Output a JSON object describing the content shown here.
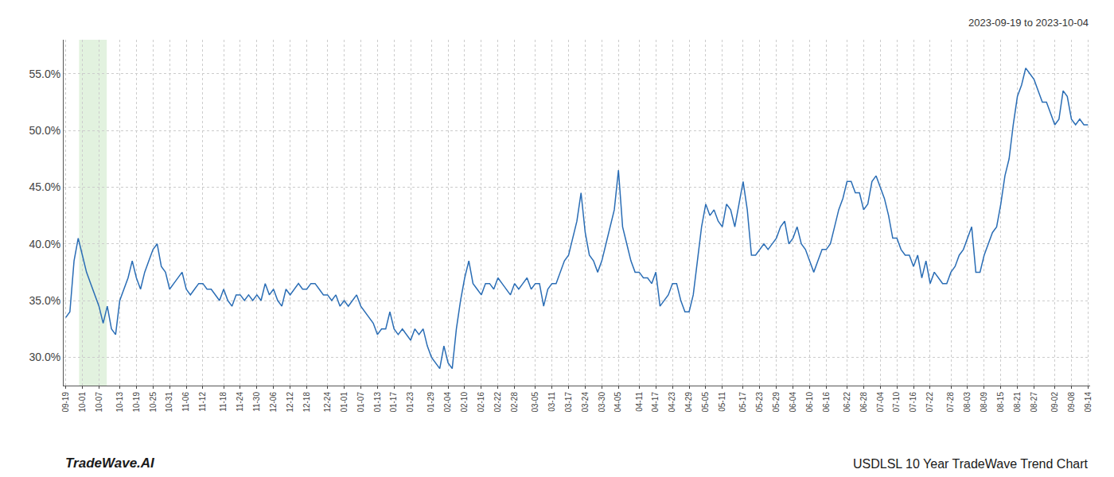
{
  "chart_data": {
    "type": "line",
    "title": "USDLSL 10 Year TradeWave Trend Chart",
    "subtitle": "2023-09-19 to 2023-10-04",
    "annotations": [
      "TradeWave.AI"
    ],
    "color": "#2a6db5",
    "grid": true,
    "ylim": [
      27.5,
      58.0
    ],
    "yticks": [
      {
        "value": 30.0,
        "label": "30.0%"
      },
      {
        "value": 35.0,
        "label": "35.0%"
      },
      {
        "value": 40.0,
        "label": "40.0%"
      },
      {
        "value": 45.0,
        "label": "45.0%"
      },
      {
        "value": 50.0,
        "label": "50.0%"
      },
      {
        "value": 55.0,
        "label": "55.0%"
      }
    ],
    "categories": [
      "09-19",
      null,
      null,
      null,
      "10-01",
      null,
      null,
      null,
      "10-07",
      null,
      null,
      null,
      null,
      "10-13",
      null,
      null,
      null,
      "10-19",
      null,
      null,
      null,
      "10-25",
      null,
      null,
      null,
      "10-31",
      null,
      null,
      null,
      "11-06",
      null,
      null,
      null,
      "11-12",
      null,
      null,
      null,
      null,
      "11-18",
      null,
      null,
      null,
      "11-24",
      null,
      null,
      null,
      "11-30",
      null,
      null,
      null,
      "12-06",
      null,
      null,
      null,
      "12-12",
      null,
      null,
      null,
      "12-18",
      null,
      null,
      null,
      null,
      "12-24",
      null,
      null,
      null,
      "01-01",
      null,
      null,
      null,
      "01-07",
      null,
      null,
      null,
      "01-13",
      null,
      null,
      null,
      "01-17",
      null,
      null,
      null,
      "01-23",
      null,
      null,
      null,
      null,
      "01-29",
      null,
      null,
      null,
      "02-04",
      null,
      null,
      null,
      "02-10",
      null,
      null,
      null,
      "02-16",
      null,
      null,
      null,
      "02-22",
      null,
      null,
      null,
      "02-28",
      null,
      null,
      null,
      null,
      "03-05",
      null,
      null,
      null,
      "03-11",
      null,
      null,
      null,
      "03-17",
      null,
      null,
      null,
      "03-24",
      null,
      null,
      null,
      "03-30",
      null,
      null,
      null,
      "04-05",
      null,
      null,
      null,
      null,
      "04-11",
      null,
      null,
      null,
      "04-17",
      null,
      null,
      null,
      "04-23",
      null,
      null,
      null,
      "04-29",
      null,
      null,
      null,
      "05-05",
      null,
      null,
      null,
      "05-11",
      null,
      null,
      null,
      null,
      "05-17",
      null,
      null,
      null,
      "05-23",
      null,
      null,
      null,
      "05-29",
      null,
      null,
      null,
      "06-04",
      null,
      null,
      null,
      "06-10",
      null,
      null,
      null,
      "06-16",
      null,
      null,
      null,
      null,
      "06-22",
      null,
      null,
      null,
      "06-28",
      null,
      null,
      null,
      "07-04",
      null,
      null,
      null,
      "07-10",
      null,
      null,
      null,
      "07-16",
      null,
      null,
      null,
      "07-22",
      null,
      null,
      null,
      null,
      "07-28",
      null,
      null,
      null,
      "08-03",
      null,
      null,
      null,
      "08-09",
      null,
      null,
      null,
      "08-15",
      null,
      null,
      null,
      "08-21",
      null,
      null,
      null,
      "08-27",
      null,
      null,
      null,
      null,
      "09-02",
      null,
      null,
      null,
      "09-08",
      null,
      null,
      null,
      "09-14"
    ],
    "values": [
      33.5,
      34.0,
      38.5,
      40.5,
      39.0,
      37.5,
      36.5,
      35.5,
      34.5,
      33.0,
      34.5,
      32.5,
      32.0,
      35.0,
      36.0,
      37.0,
      38.5,
      37.0,
      36.0,
      37.5,
      38.5,
      39.5,
      40.0,
      38.0,
      37.5,
      36.0,
      36.5,
      37.0,
      37.5,
      36.0,
      35.5,
      36.0,
      36.5,
      36.5,
      36.0,
      36.0,
      35.5,
      35.0,
      36.0,
      35.0,
      34.5,
      35.5,
      35.5,
      35.0,
      35.5,
      35.0,
      35.5,
      35.0,
      36.5,
      35.5,
      36.0,
      35.0,
      34.5,
      36.0,
      35.5,
      36.0,
      36.5,
      36.0,
      36.0,
      36.5,
      36.5,
      36.0,
      35.5,
      35.5,
      35.0,
      35.5,
      34.5,
      35.0,
      34.5,
      35.0,
      35.5,
      34.5,
      34.0,
      33.5,
      33.0,
      32.0,
      32.5,
      32.5,
      34.0,
      32.5,
      32.0,
      32.5,
      32.0,
      31.5,
      32.5,
      32.0,
      32.5,
      31.0,
      30.0,
      29.5,
      29.0,
      31.0,
      29.5,
      29.0,
      32.5,
      35.0,
      37.0,
      38.5,
      36.5,
      36.0,
      35.5,
      36.5,
      36.5,
      36.0,
      37.0,
      36.5,
      36.0,
      35.5,
      36.5,
      36.0,
      36.5,
      37.0,
      36.0,
      36.5,
      36.5,
      34.5,
      36.0,
      36.5,
      36.5,
      37.5,
      38.5,
      39.0,
      40.5,
      42.0,
      44.5,
      41.0,
      39.0,
      38.5,
      37.5,
      38.5,
      40.0,
      41.5,
      43.0,
      46.5,
      41.5,
      40.0,
      38.5,
      37.5,
      37.5,
      37.0,
      37.0,
      36.5,
      37.5,
      34.5,
      35.0,
      35.5,
      36.5,
      36.5,
      35.0,
      34.0,
      34.0,
      35.5,
      38.5,
      41.5,
      43.5,
      42.5,
      43.0,
      42.0,
      41.5,
      43.5,
      43.0,
      41.5,
      43.5,
      45.5,
      43.0,
      39.0,
      39.0,
      39.5,
      40.0,
      39.5,
      40.0,
      40.5,
      41.5,
      42.0,
      40.0,
      40.5,
      41.5,
      40.0,
      39.5,
      38.5,
      37.5,
      38.5,
      39.5,
      39.5,
      40.0,
      41.5,
      43.0,
      44.0,
      45.5,
      45.5,
      44.5,
      44.5,
      43.0,
      43.5,
      45.5,
      46.0,
      45.0,
      44.0,
      42.5,
      40.5,
      40.5,
      39.5,
      39.0,
      39.0,
      38.0,
      39.0,
      37.0,
      38.5,
      36.5,
      37.5,
      37.0,
      36.5,
      36.5,
      37.5,
      38.0,
      39.0,
      39.5,
      40.5,
      41.5,
      37.5,
      37.5,
      39.0,
      40.0,
      41.0,
      41.5,
      43.5,
      46.0,
      47.5,
      50.5,
      53.0,
      54.0,
      55.5,
      55.0,
      54.5,
      53.5,
      52.5,
      52.5,
      51.5,
      50.5,
      51.0,
      53.5,
      53.0,
      51.0,
      50.5,
      51.0,
      50.5,
      50.5
    ]
  }
}
